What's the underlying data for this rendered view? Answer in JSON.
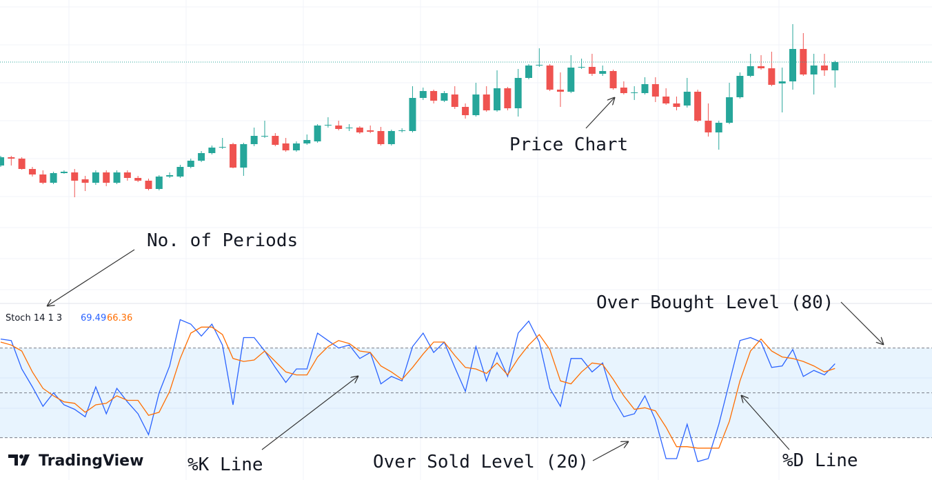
{
  "chart_data": [
    {
      "type": "candlestick",
      "up_color": "#26a69a",
      "down_color": "#ef5350",
      "ylim": [
        0,
        300
      ],
      "open": [
        60,
        72,
        70,
        55,
        47,
        35,
        49,
        50,
        40,
        35,
        50,
        35,
        50,
        42,
        38,
        26,
        44,
        44,
        58,
        67,
        78,
        86,
        91,
        57,
        91,
        102,
        103,
        92,
        82,
        92,
        95,
        118,
        118,
        114,
        115,
        111,
        110,
        91,
        110,
        110,
        158,
        168,
        154,
        163,
        145,
        133,
        163,
        140,
        172,
        143,
        187,
        205,
        205,
        170,
        167,
        202,
        203,
        193,
        197,
        173,
        165,
        165,
        178,
        160,
        150,
        147,
        167,
        125,
        108,
        122,
        159,
        190,
        204,
        201,
        179,
        182,
        229,
        192,
        205,
        198
      ],
      "high": [
        74,
        74,
        72,
        58,
        53,
        51,
        53,
        55,
        45,
        53,
        53,
        53,
        53,
        45,
        41,
        46,
        50,
        61,
        70,
        81,
        89,
        100,
        93,
        93,
        115,
        125,
        107,
        100,
        95,
        105,
        120,
        130,
        125,
        120,
        117,
        118,
        116,
        112,
        114,
        175,
        173,
        170,
        168,
        175,
        150,
        180,
        175,
        198,
        174,
        200,
        207,
        230,
        207,
        195,
        220,
        215,
        222,
        205,
        199,
        182,
        175,
        188,
        188,
        172,
        160,
        187,
        170,
        150,
        125,
        180,
        195,
        222,
        220,
        225,
        202,
        265,
        252,
        222,
        222,
        212
      ],
      "low": [
        58,
        60,
        54,
        44,
        33,
        33,
        48,
        14,
        23,
        32,
        30,
        33,
        38,
        36,
        24,
        24,
        42,
        42,
        56,
        65,
        76,
        84,
        56,
        45,
        88,
        100,
        88,
        80,
        80,
        90,
        93,
        115,
        111,
        110,
        106,
        107,
        89,
        89,
        108,
        108,
        155,
        150,
        152,
        142,
        128,
        131,
        138,
        138,
        140,
        131,
        185,
        203,
        168,
        145,
        165,
        200,
        190,
        190,
        170,
        163,
        155,
        163,
        152,
        148,
        140,
        144,
        123,
        102,
        83,
        120,
        157,
        188,
        199,
        175,
        137,
        170,
        190,
        163,
        190,
        173
      ],
      "close": [
        72,
        70,
        55,
        47,
        35,
        49,
        51,
        38,
        35,
        50,
        35,
        50,
        42,
        38,
        26,
        44,
        46,
        58,
        67,
        78,
        86,
        87,
        57,
        91,
        103,
        103,
        90,
        82,
        92,
        97,
        118,
        119,
        113,
        115,
        108,
        109,
        91,
        110,
        111,
        158,
        168,
        154,
        165,
        145,
        133,
        163,
        140,
        172,
        143,
        187,
        205,
        206,
        170,
        167,
        202,
        203,
        193,
        197,
        172,
        165,
        166,
        178,
        160,
        150,
        145,
        167,
        125,
        108,
        122,
        159,
        190,
        204,
        201,
        177,
        182,
        229,
        192,
        205,
        198,
        210
      ]
    },
    {
      "type": "line",
      "legend_label": "Stoch 14 1 3",
      "ylim": [
        0,
        100
      ],
      "levels": [
        80,
        50,
        20
      ],
      "band_color": "#2196f3",
      "series": [
        {
          "color": "#2962ff",
          "values": [
            86,
            85,
            66,
            54,
            41,
            50,
            42,
            39,
            34,
            54,
            36,
            53,
            44,
            36,
            22,
            50,
            68,
            99,
            96,
            88,
            96,
            82,
            42,
            87,
            87,
            78,
            67,
            57,
            66,
            66,
            90,
            85,
            80,
            82,
            73,
            77,
            56,
            61,
            58,
            81,
            90,
            77,
            84,
            67,
            51,
            81,
            58,
            77,
            61,
            90,
            98,
            84,
            53,
            41,
            73,
            73,
            64,
            70,
            46,
            34,
            36,
            48,
            32,
            6,
            6,
            29,
            4,
            6,
            29,
            57,
            85,
            87,
            84,
            67,
            68,
            79,
            61,
            65,
            62,
            69.49
          ]
        },
        {
          "color": "#ff6d00",
          "values": [
            84,
            82,
            78,
            64,
            53,
            48,
            44,
            43,
            37,
            42,
            43,
            48,
            45,
            45,
            35,
            37,
            51,
            73,
            90,
            94,
            94,
            89,
            73,
            71,
            72,
            78,
            71,
            64,
            62,
            62,
            74,
            81,
            85,
            83,
            78,
            77,
            68,
            64,
            59,
            67,
            76,
            84,
            84,
            75,
            67,
            66,
            63,
            70,
            62,
            73,
            82,
            89,
            79,
            58,
            56,
            64,
            70,
            69,
            59,
            48,
            39,
            40,
            38,
            27,
            14,
            14,
            13,
            13,
            13,
            31,
            58,
            78,
            86,
            78,
            74,
            73,
            71,
            68,
            64,
            66.36
          ]
        }
      ]
    }
  ],
  "annotations": [
    "Price Chart",
    "No. of Periods",
    "Over Bought Level (80)",
    "%K Line",
    "Over Sold Level (20)",
    "%D Line"
  ],
  "logo": "TradingView"
}
